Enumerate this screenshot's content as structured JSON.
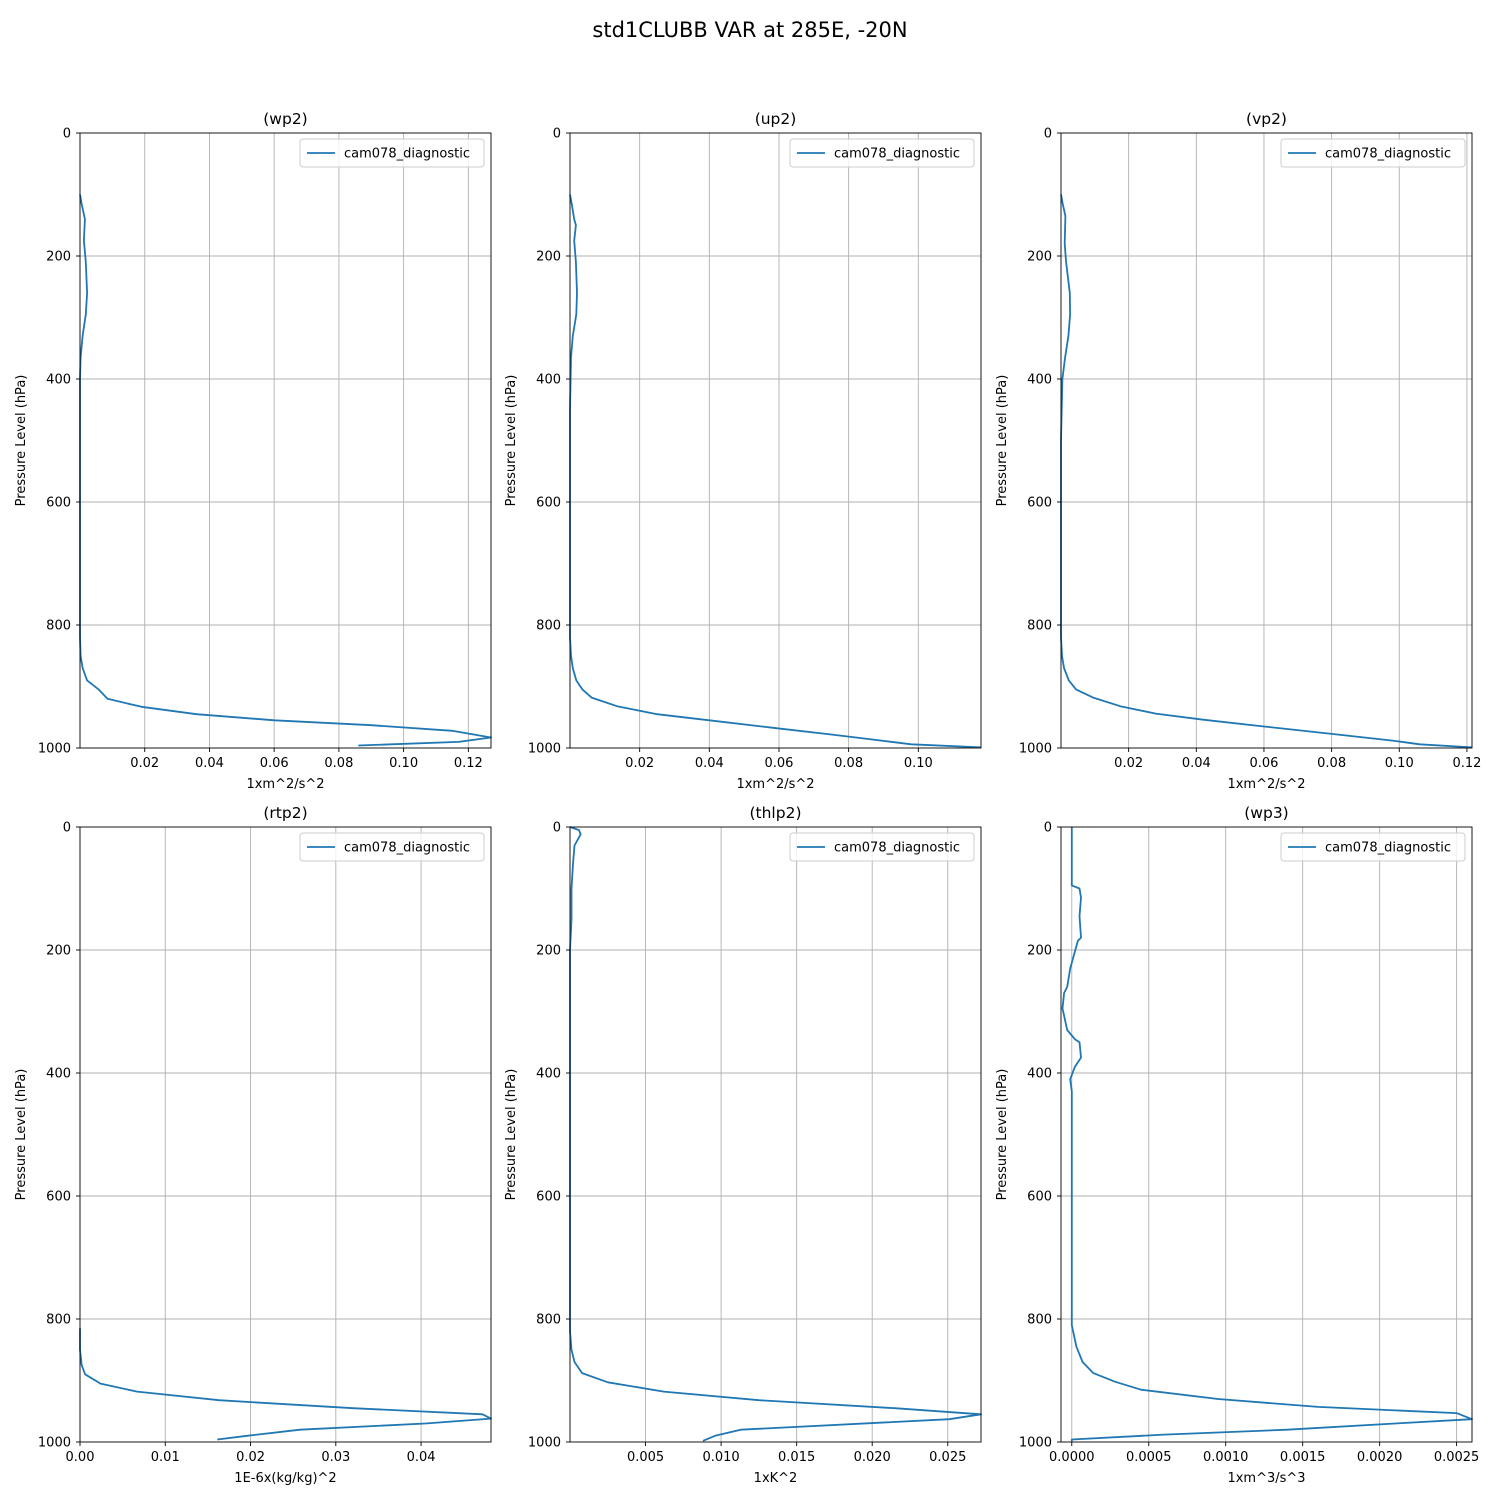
{
  "figure": {
    "title": "std1CLUBB VAR at 285E, -20N",
    "series_color": "#1f77b4"
  },
  "chart_data": [
    {
      "type": "line",
      "title": "(wp2)",
      "xlabel": "1xm^2/s^2",
      "ylabel": "Pressure Level (hPa)",
      "xlim": [
        0.0,
        0.127
      ],
      "ylim": [
        1000,
        0
      ],
      "yticks": [
        0,
        200,
        400,
        600,
        800,
        1000
      ],
      "xticks": [
        0.02,
        0.04,
        0.06,
        0.08,
        0.1,
        0.12
      ],
      "xtick_labels": [
        "0.02",
        "0.04",
        "0.06",
        "0.08",
        "0.10",
        "0.12"
      ],
      "grid": true,
      "legend_position": "upper right",
      "series": [
        {
          "name": "cam078_diagnostic",
          "x": [
            0.0,
            0.0005,
            0.0015,
            0.0012,
            0.0018,
            0.0022,
            0.0018,
            0.0008,
            0.0002,
            0.0,
            0.0,
            0.0,
            0.0,
            0.0002,
            0.0008,
            0.0022,
            0.0058,
            0.0085,
            0.019,
            0.036,
            0.06,
            0.09,
            0.115,
            0.127,
            0.117,
            0.086
          ],
          "y": [
            100,
            115,
            140,
            175,
            210,
            260,
            295,
            330,
            365,
            400,
            500,
            700,
            820,
            850,
            870,
            890,
            905,
            920,
            933,
            945,
            955,
            963,
            972,
            983,
            990,
            996
          ]
        }
      ]
    },
    {
      "type": "line",
      "title": "(up2)",
      "xlabel": "1xm^2/s^2",
      "ylabel": "Pressure Level (hPa)",
      "xlim": [
        0.0,
        0.118
      ],
      "ylim": [
        1000,
        0
      ],
      "yticks": [
        0,
        200,
        400,
        600,
        800,
        1000
      ],
      "xticks": [
        0.02,
        0.04,
        0.06,
        0.08,
        0.1
      ],
      "xtick_labels": [
        "0.02",
        "0.04",
        "0.06",
        "0.08",
        "0.10"
      ],
      "grid": true,
      "legend_position": "upper right",
      "series": [
        {
          "name": "cam078_diagnostic",
          "x": [
            0.0,
            0.0005,
            0.0012,
            0.0017,
            0.0012,
            0.0017,
            0.002,
            0.0018,
            0.0008,
            0.0003,
            0.0,
            0.0,
            0.0,
            0.0003,
            0.0008,
            0.0018,
            0.0036,
            0.0062,
            0.0135,
            0.025,
            0.04,
            0.058,
            0.075,
            0.088,
            0.098,
            0.118
          ],
          "y": [
            100,
            115,
            140,
            150,
            175,
            210,
            260,
            295,
            330,
            365,
            450,
            700,
            820,
            850,
            870,
            890,
            905,
            918,
            932,
            945,
            955,
            967,
            978,
            987,
            994,
            999
          ]
        }
      ]
    },
    {
      "type": "line",
      "title": "(vp2)",
      "xlabel": "1xm^2/s^2",
      "ylabel": "Pressure Level (hPa)",
      "xlim": [
        0.0,
        0.1215
      ],
      "ylim": [
        1000,
        0
      ],
      "yticks": [
        0,
        200,
        400,
        600,
        800,
        1000
      ],
      "xticks": [
        0.02,
        0.04,
        0.06,
        0.08,
        0.1,
        0.12
      ],
      "xtick_labels": [
        "0.02",
        "0.04",
        "0.06",
        "0.08",
        "0.10",
        "0.12"
      ],
      "grid": true,
      "legend_position": "upper right",
      "series": [
        {
          "name": "cam078_diagnostic",
          "x": [
            0.0,
            0.0005,
            0.0013,
            0.0011,
            0.0015,
            0.0026,
            0.0027,
            0.0022,
            0.0012,
            0.0004,
            0.0,
            0.0,
            0.0,
            0.0003,
            0.0009,
            0.0023,
            0.0045,
            0.0095,
            0.0175,
            0.028,
            0.042,
            0.06,
            0.08,
            0.098,
            0.106,
            0.1215
          ],
          "y": [
            100,
            115,
            135,
            180,
            210,
            260,
            295,
            330,
            365,
            400,
            500,
            700,
            820,
            850,
            870,
            890,
            905,
            918,
            932,
            944,
            954,
            965,
            977,
            988,
            994,
            999
          ]
        }
      ]
    },
    {
      "type": "line",
      "title": "(rtp2)",
      "xlabel": "1E-6x(kg/kg)^2",
      "ylabel": "Pressure Level (hPa)",
      "xlim": [
        0.0,
        0.0482
      ],
      "ylim": [
        1000,
        0
      ],
      "yticks": [
        0,
        200,
        400,
        600,
        800,
        1000
      ],
      "xticks": [
        0.0,
        0.01,
        0.02,
        0.03,
        0.04
      ],
      "xtick_labels": [
        "0.00",
        "0.01",
        "0.02",
        "0.03",
        "0.04"
      ],
      "grid": true,
      "legend_position": "upper right",
      "series": [
        {
          "name": "cam078_diagnostic",
          "x": [
            0.0,
            0.0,
            0.0002,
            0.0006,
            0.0024,
            0.0067,
            0.0163,
            0.032,
            0.0472,
            0.0482,
            0.0405,
            0.0258,
            0.0196,
            0.0161
          ],
          "y": [
            815,
            850,
            875,
            890,
            905,
            918,
            932,
            945,
            955,
            962,
            970,
            980,
            990,
            996
          ]
        }
      ]
    },
    {
      "type": "line",
      "title": "(thlp2)",
      "xlabel": "1xK^2",
      "ylabel": "Pressure Level (hPa)",
      "xlim": [
        0.0,
        0.0272
      ],
      "ylim": [
        1000,
        0
      ],
      "yticks": [
        0,
        200,
        400,
        600,
        800,
        1000
      ],
      "xticks": [
        0.005,
        0.01,
        0.015,
        0.02,
        0.025
      ],
      "xtick_labels": [
        "0.005",
        "0.010",
        "0.015",
        "0.020",
        "0.025"
      ],
      "grid": true,
      "legend_position": "upper right",
      "series": [
        {
          "name": "cam078_diagnostic",
          "x": [
            0.0,
            0.0006,
            0.0007,
            0.0003,
            0.0002,
            0.0001,
            0.0001,
            0.0,
            0.0,
            0.0,
            0.0,
            0.0001,
            0.0003,
            0.0008,
            0.0025,
            0.0062,
            0.0125,
            0.0215,
            0.0272,
            0.0251,
            0.0113,
            0.0096,
            0.0088
          ],
          "y": [
            0,
            5,
            12,
            30,
            60,
            100,
            150,
            200,
            400,
            700,
            820,
            850,
            870,
            888,
            903,
            918,
            932,
            945,
            955,
            963,
            980,
            990,
            998
          ]
        }
      ]
    },
    {
      "type": "line",
      "title": "(wp3)",
      "xlabel": "1xm^3/s^3",
      "ylabel": "Pressure Level (hPa)",
      "xlim": [
        -7e-05,
        0.0026
      ],
      "ylim": [
        1000,
        0
      ],
      "yticks": [
        0,
        200,
        400,
        600,
        800,
        1000
      ],
      "xticks": [
        0.0,
        0.0005,
        0.001,
        0.0015,
        0.002,
        0.0025
      ],
      "xtick_labels": [
        "0.0000",
        "0.0005",
        "0.0010",
        "0.0015",
        "0.0020",
        "0.0025"
      ],
      "grid": true,
      "legend_position": "upper right",
      "series": [
        {
          "name": "cam078_diagnostic",
          "x": [
            0.0,
            0.0,
            5e-05,
            6e-05,
            5e-05,
            6e-05,
            4e-05,
            -1e-05,
            -3e-05,
            -5e-05,
            -6e-05,
            -3e-05,
            2e-05,
            5e-05,
            6e-05,
            2e-05,
            -1e-05,
            0.0,
            0.0,
            0.0,
            3e-05,
            7e-05,
            0.00014,
            0.00028,
            0.00045,
            0.00095,
            0.0016,
            0.0025,
            0.0026,
            0.0021,
            0.0014,
            0.0006,
            0.0,
            0.0,
            0.0
          ],
          "y": [
            0,
            95,
            100,
            115,
            145,
            180,
            185,
            230,
            260,
            270,
            295,
            330,
            345,
            350,
            375,
            390,
            410,
            430,
            600,
            810,
            845,
            870,
            888,
            902,
            915,
            930,
            943,
            953,
            963,
            970,
            980,
            988,
            996,
            998,
            999
          ]
        }
      ]
    }
  ]
}
